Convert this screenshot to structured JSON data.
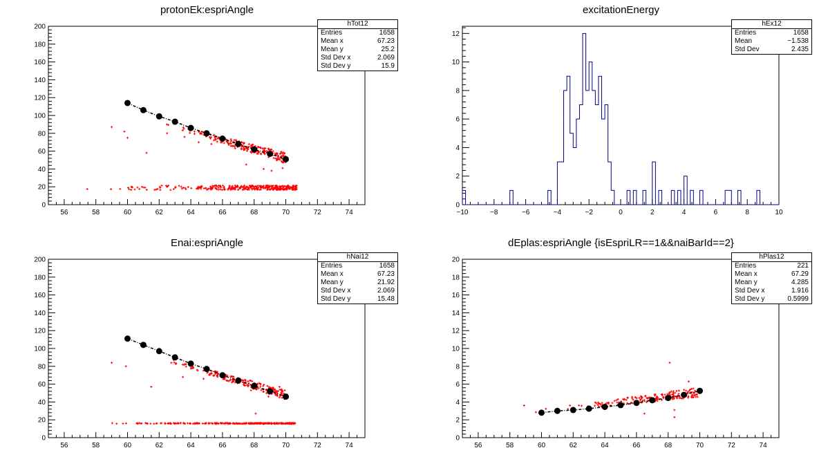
{
  "panels": [
    {
      "id": "hTot12",
      "title": "protonEk:espriAngle",
      "stats": {
        "name": "hTot12",
        "rows": [
          {
            "label": "Entries",
            "value": "1658"
          },
          {
            "label": "Mean x",
            "value": "67.23"
          },
          {
            "label": "Mean y",
            "value": "25.2"
          },
          {
            "label": "Std Dev x",
            "value": "2.069"
          },
          {
            "label": "Std Dev y",
            "value": "15.9"
          }
        ]
      }
    },
    {
      "id": "hEx12",
      "title": "excitationEnergy",
      "stats": {
        "name": "hEx12",
        "rows": [
          {
            "label": "Entries",
            "value": "1658"
          },
          {
            "label": "Mean",
            "value": "−1.538"
          },
          {
            "label": "Std Dev",
            "value": "2.435"
          }
        ]
      }
    },
    {
      "id": "hNai12",
      "title": "Enai:espriAngle",
      "stats": {
        "name": "hNai12",
        "rows": [
          {
            "label": "Entries",
            "value": "1658"
          },
          {
            "label": "Mean x",
            "value": "67.23"
          },
          {
            "label": "Mean y",
            "value": "21.92"
          },
          {
            "label": "Std Dev x",
            "value": "2.069"
          },
          {
            "label": "Std Dev y",
            "value": "15.48"
          }
        ]
      }
    },
    {
      "id": "hPlas12",
      "title": "dEplas:espriAngle {isEspriLR==1&&naiBarId==2}",
      "stats": {
        "name": "hPlas12",
        "rows": [
          {
            "label": "Entries",
            "value": "221"
          },
          {
            "label": "Mean x",
            "value": "67.29"
          },
          {
            "label": "Mean y",
            "value": "4.285"
          },
          {
            "label": "Std Dev x",
            "value": "1.916"
          },
          {
            "label": "Std Dev y",
            "value": "0.5999"
          }
        ]
      }
    }
  ],
  "colors": {
    "scatter": "#ff0000",
    "profile": "#000000",
    "hist": "#000080",
    "frame": "#000000"
  },
  "chart_data": [
    {
      "type": "scatter",
      "title": "protonEk:espriAngle",
      "xlim": [
        55,
        75
      ],
      "ylim": [
        0,
        200
      ],
      "xticks": [
        "56",
        "58",
        "60",
        "62",
        "64",
        "66",
        "68",
        "70",
        "72",
        "74"
      ],
      "yticks": [
        "0",
        "20",
        "40",
        "60",
        "80",
        "100",
        "120",
        "140",
        "160",
        "180",
        "200"
      ],
      "band": {
        "x_range": [
          56.5,
          70.7
        ],
        "y_center": 19,
        "y_spread": 2.5,
        "points": 320
      },
      "curve": {
        "x_range": [
          62,
          70
        ],
        "y_at_start": 93,
        "y_at_end": 52,
        "spread": 4,
        "points": 220
      },
      "outliers": [
        [
          59,
          87
        ],
        [
          59.8,
          82
        ],
        [
          60,
          75
        ],
        [
          61.2,
          58
        ],
        [
          62.5,
          80
        ],
        [
          63.6,
          76
        ],
        [
          64.5,
          70
        ],
        [
          65.3,
          68
        ],
        [
          66.8,
          63
        ],
        [
          67.5,
          45
        ],
        [
          68.6,
          40
        ],
        [
          69.1,
          38
        ],
        [
          69.8,
          41
        ]
      ],
      "profile": {
        "x": [
          60,
          61,
          62,
          63,
          64,
          65,
          66,
          67,
          68,
          69,
          70
        ],
        "y": [
          114,
          106,
          99,
          93,
          86,
          80,
          74,
          68,
          62,
          57,
          51
        ]
      }
    },
    {
      "type": "histogram",
      "title": "excitationEnergy",
      "xlim": [
        -10,
        10
      ],
      "ylim": [
        0,
        12.5
      ],
      "xticks": [
        "−10",
        "−8",
        "−6",
        "−4",
        "−2",
        "0",
        "2",
        "4",
        "6",
        "8",
        "10"
      ],
      "yticks": [
        "0",
        "2",
        "4",
        "6",
        "8",
        "10",
        "12"
      ],
      "bin_width": 0.2,
      "bins": [
        [
          -10.0,
          1
        ],
        [
          -7.0,
          1
        ],
        [
          -4.6,
          1
        ],
        [
          -4.0,
          3
        ],
        [
          -3.8,
          3
        ],
        [
          -3.6,
          8
        ],
        [
          -3.4,
          9
        ],
        [
          -3.2,
          5
        ],
        [
          -3.0,
          4
        ],
        [
          -2.8,
          6
        ],
        [
          -2.6,
          7
        ],
        [
          -2.4,
          12
        ],
        [
          -2.2,
          8
        ],
        [
          -2.0,
          10
        ],
        [
          -1.8,
          8
        ],
        [
          -1.6,
          7
        ],
        [
          -1.4,
          9
        ],
        [
          -1.2,
          6
        ],
        [
          -1.0,
          7
        ],
        [
          -0.8,
          3
        ],
        [
          -0.6,
          1
        ],
        [
          0.4,
          1
        ],
        [
          0.8,
          1
        ],
        [
          1.4,
          1
        ],
        [
          2.0,
          3
        ],
        [
          2.4,
          1
        ],
        [
          3.2,
          1
        ],
        [
          3.6,
          1
        ],
        [
          4.0,
          2
        ],
        [
          4.4,
          1
        ],
        [
          5.0,
          1
        ],
        [
          6.6,
          1
        ],
        [
          6.8,
          1
        ],
        [
          7.4,
          1
        ],
        [
          8.6,
          1
        ]
      ]
    },
    {
      "type": "scatter",
      "title": "Enai:espriAngle",
      "xlim": [
        55,
        75
      ],
      "ylim": [
        0,
        200
      ],
      "xticks": [
        "56",
        "58",
        "60",
        "62",
        "64",
        "66",
        "68",
        "70",
        "72",
        "74"
      ],
      "yticks": [
        "0",
        "20",
        "40",
        "60",
        "80",
        "100",
        "120",
        "140",
        "160",
        "180",
        "200"
      ],
      "band": {
        "x_range": [
          56.5,
          70.7
        ],
        "y_center": 16,
        "y_spread": 0.4,
        "points": 300
      },
      "curve": {
        "x_range": [
          62,
          70
        ],
        "y_at_start": 90,
        "y_at_end": 48,
        "spread": 3.5,
        "points": 200
      },
      "outliers": [
        [
          59,
          84
        ],
        [
          59.9,
          80
        ],
        [
          61.5,
          57
        ],
        [
          63.5,
          68
        ],
        [
          64.8,
          66
        ],
        [
          66.6,
          62
        ],
        [
          67.8,
          53
        ],
        [
          68.1,
          27
        ],
        [
          68.9,
          46
        ],
        [
          69.6,
          57
        ]
      ],
      "profile": {
        "x": [
          60,
          61,
          62,
          63,
          64,
          65,
          66,
          67,
          68,
          69,
          70
        ],
        "y": [
          111,
          104,
          97,
          90,
          83,
          77,
          70,
          64,
          58,
          52,
          46
        ]
      }
    },
    {
      "type": "scatter",
      "title": "dEplas:espriAngle {isEspriLR==1&&naiBarId==2}",
      "xlim": [
        55,
        75
      ],
      "ylim": [
        0,
        20
      ],
      "xticks": [
        "56",
        "58",
        "60",
        "62",
        "64",
        "66",
        "68",
        "70",
        "72",
        "74"
      ],
      "yticks": [
        "0",
        "2",
        "4",
        "6",
        "8",
        "10",
        "12",
        "14",
        "16",
        "18",
        "20"
      ],
      "curve": {
        "x_range": [
          59.2,
          70
        ],
        "y_at_start": 2.8,
        "y_at_end": 5.1,
        "spread": 0.35,
        "points": 180
      },
      "outliers": [
        [
          58.9,
          3.6
        ],
        [
          68.1,
          8.4
        ],
        [
          68.4,
          3.1
        ],
        [
          69.3,
          6.3
        ],
        [
          66.5,
          2.7
        ],
        [
          68.4,
          2.3
        ]
      ],
      "profile": {
        "x": [
          60,
          61,
          62,
          63,
          64,
          65,
          66,
          67,
          68,
          69,
          70
        ],
        "y": [
          2.8,
          3.0,
          3.1,
          3.25,
          3.45,
          3.65,
          3.9,
          4.2,
          4.45,
          4.8,
          5.25
        ]
      }
    }
  ]
}
